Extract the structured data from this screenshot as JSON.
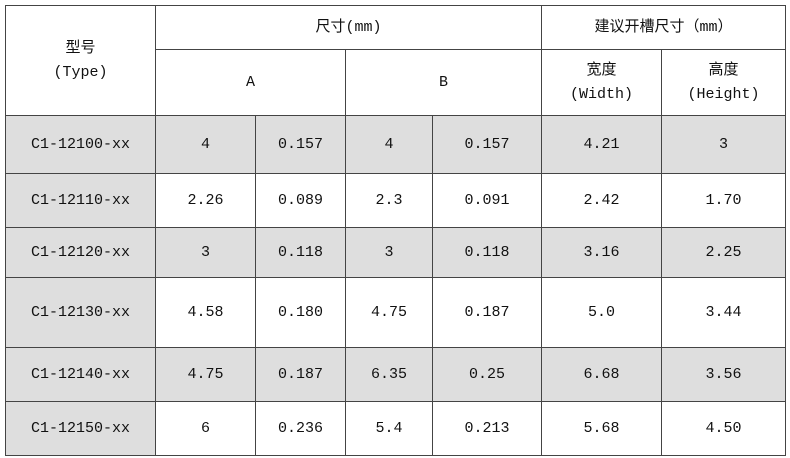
{
  "header": {
    "type_label": "型号",
    "type_sub": "(Type)",
    "size": "尺寸(mm)",
    "slot": "建议开槽尺寸（mm）",
    "a": "A",
    "b": "B",
    "width": "宽度",
    "width_sub": "(Width)",
    "height": "高度",
    "height_sub": "(Height)"
  },
  "table": {
    "rows": [
      [
        "C1-12100-xx",
        "4",
        "0.157",
        "4",
        "0.157",
        "4.21",
        "3"
      ],
      [
        "C1-12110-xx",
        "2.26",
        "0.089",
        "2.3",
        "0.091",
        "2.42",
        "1.70"
      ],
      [
        "C1-12120-xx",
        "3",
        "0.118",
        "3",
        "0.118",
        "3.16",
        "2.25"
      ],
      [
        "C1-12130-xx",
        "4.58",
        "0.180",
        "4.75",
        "0.187",
        "5.0",
        "3.44"
      ],
      [
        "C1-12140-xx",
        "4.75",
        "0.187",
        "6.35",
        "0.25",
        "6.68",
        "3.56"
      ],
      [
        "C1-12150-xx",
        "6",
        "0.236",
        "5.4",
        "0.213",
        "5.68",
        "4.50"
      ]
    ]
  }
}
